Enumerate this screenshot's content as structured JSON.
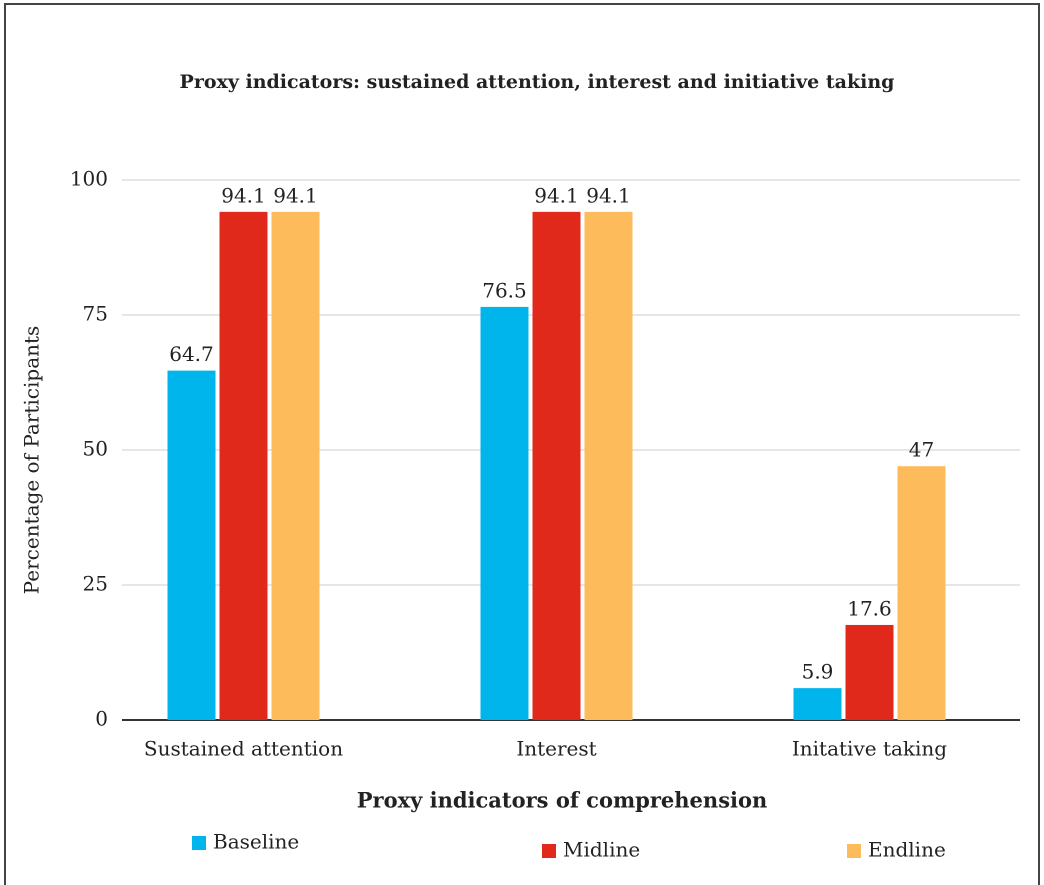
{
  "chart_data": {
    "type": "bar",
    "title": "Proxy indicators: sustained attention, interest and initiative taking",
    "x_label": "Proxy indicators of comprehension",
    "y_label": "Percentage of Participants",
    "categories": [
      "Sustained attention",
      "Interest",
      "Initative taking"
    ],
    "series": [
      {
        "name": "Baseline",
        "color": "#00b4ec",
        "values": [
          64.7,
          76.5,
          5.9
        ]
      },
      {
        "name": "Midline",
        "color": "#e0291b",
        "values": [
          94.1,
          94.1,
          17.6
        ]
      },
      {
        "name": "Endline",
        "color": "#fdbb5b",
        "values": [
          94.1,
          94.1,
          47
        ]
      }
    ],
    "ylim": [
      0,
      100
    ],
    "yticks": [
      0,
      25,
      50,
      75,
      100
    ],
    "grid": true,
    "legend": "bottom"
  }
}
